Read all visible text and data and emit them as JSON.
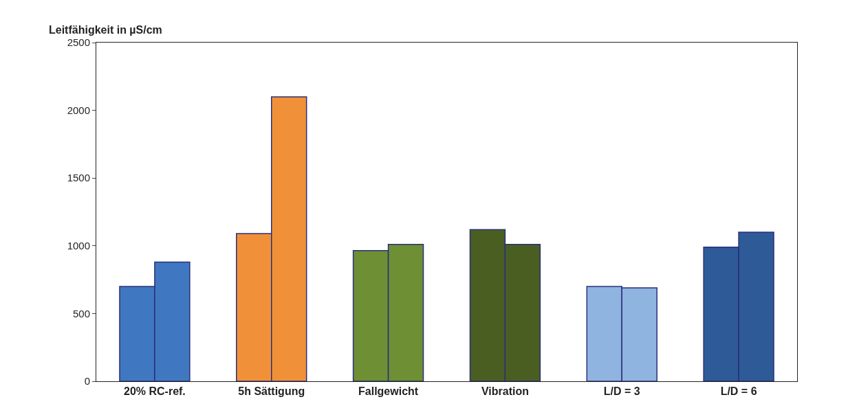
{
  "chart_data": {
    "type": "bar",
    "ylabel": "Leitfähigkeit in µS/cm",
    "categories": [
      "20% RC-ref.",
      "5h Sättigung",
      "Fallgewicht",
      "Vibration",
      "L/D = 3",
      "L/D = 6"
    ],
    "series": [
      {
        "colors": [
          "#3f78c0",
          "#f0913a",
          "#6e8f33",
          "#4a5e22",
          "#8fb4e0",
          "#2e5a98"
        ],
        "values": [
          700,
          1090,
          965,
          1120,
          700,
          990
        ]
      },
      {
        "colors": [
          "#3f78c0",
          "#f0913a",
          "#6e8f33",
          "#4a5e22",
          "#8fb4e0",
          "#2e5a98"
        ],
        "values": [
          880,
          2100,
          1010,
          1010,
          690,
          1100
        ]
      }
    ],
    "ylim": [
      0,
      2500
    ],
    "yticks": [
      0,
      500,
      1000,
      1500,
      2000,
      2500
    ]
  }
}
